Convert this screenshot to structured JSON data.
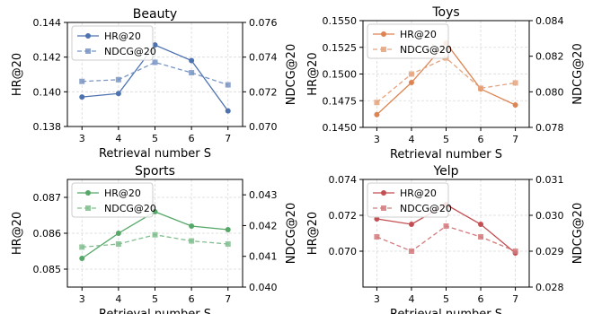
{
  "chart_data": [
    {
      "type": "line",
      "title": "Beauty",
      "xlabel": "Retrieval number S",
      "ylabel_left": "HR@20",
      "ylabel_right": "NDCG@20",
      "x": [
        3,
        4,
        5,
        6,
        7
      ],
      "xticks": [
        "3",
        "4",
        "5",
        "6",
        "7"
      ],
      "ylim_left": [
        0.138,
        0.144
      ],
      "yticks_left": [
        "0.138",
        "0.140",
        "0.142",
        "0.144"
      ],
      "ylim_right": [
        0.07,
        0.076
      ],
      "yticks_right": [
        "0.070",
        "0.072",
        "0.074",
        "0.076"
      ],
      "color": "#4c72b0",
      "legend_position": "upper-left",
      "grid": true,
      "series": [
        {
          "name": "HR@20",
          "axis": "left",
          "marker": "circle",
          "dashed": false,
          "values": [
            0.1397,
            0.1399,
            0.1427,
            0.1418,
            0.1389
          ]
        },
        {
          "name": "NDCG@20",
          "axis": "right",
          "marker": "square",
          "dashed": true,
          "values": [
            0.0726,
            0.0727,
            0.0737,
            0.0731,
            0.0724
          ]
        }
      ]
    },
    {
      "type": "line",
      "title": "Toys",
      "xlabel": "Retrieval number S",
      "ylabel_left": "HR@20",
      "ylabel_right": "NDCG@20",
      "x": [
        3,
        4,
        5,
        6,
        7
      ],
      "xticks": [
        "3",
        "4",
        "5",
        "6",
        "7"
      ],
      "ylim_left": [
        0.145,
        0.155
      ],
      "yticks_left": [
        "0.1450",
        "0.1475",
        "0.1500",
        "0.1525",
        "0.1550"
      ],
      "ylim_right": [
        0.078,
        0.084
      ],
      "yticks_right": [
        "0.078",
        "0.080",
        "0.082",
        "0.084"
      ],
      "color": "#dd8452",
      "legend_position": "upper-left",
      "grid": true,
      "series": [
        {
          "name": "HR@20",
          "axis": "left",
          "marker": "circle",
          "dashed": false,
          "values": [
            0.1462,
            0.1492,
            0.1529,
            0.1486,
            0.1471
          ]
        },
        {
          "name": "NDCG@20",
          "axis": "right",
          "marker": "square",
          "dashed": true,
          "values": [
            0.0794,
            0.081,
            0.0819,
            0.0802,
            0.0805
          ]
        }
      ]
    },
    {
      "type": "line",
      "title": "Sports",
      "xlabel": "Retrieval number S",
      "ylabel_left": "HR@20",
      "ylabel_right": "NDCG@20",
      "x": [
        3,
        4,
        5,
        6,
        7
      ],
      "xticks": [
        "3",
        "4",
        "5",
        "6",
        "7"
      ],
      "ylim_left": [
        0.0845,
        0.0875
      ],
      "yticks_left": [
        "0.085",
        "0.086",
        "0.087"
      ],
      "ylim_right": [
        0.04,
        0.0435
      ],
      "yticks_right": [
        "0.040",
        "0.041",
        "0.042",
        "0.043"
      ],
      "color": "#55a868",
      "legend_position": "upper-left",
      "grid": true,
      "series": [
        {
          "name": "HR@20",
          "axis": "left",
          "marker": "circle",
          "dashed": false,
          "values": [
            0.0853,
            0.086,
            0.0866,
            0.0862,
            0.0861
          ]
        },
        {
          "name": "NDCG@20",
          "axis": "right",
          "marker": "square",
          "dashed": true,
          "values": [
            0.0413,
            0.0414,
            0.0417,
            0.0415,
            0.0414
          ]
        }
      ]
    },
    {
      "type": "line",
      "title": "Yelp",
      "xlabel": "Retrieval number S",
      "ylabel_left": "HR@20",
      "ylabel_right": "NDCG@20",
      "x": [
        3,
        4,
        5,
        6,
        7
      ],
      "xticks": [
        "3",
        "4",
        "5",
        "6",
        "7"
      ],
      "ylim_left": [
        0.068,
        0.074
      ],
      "yticks_left": [
        "0.070",
        "0.072",
        "0.074"
      ],
      "ylim_right": [
        0.028,
        0.031
      ],
      "yticks_right": [
        "0.028",
        "0.029",
        "0.030",
        "0.031"
      ],
      "color": "#c44e52",
      "legend_position": "upper-left",
      "grid": true,
      "series": [
        {
          "name": "HR@20",
          "axis": "left",
          "marker": "circle",
          "dashed": false,
          "values": [
            0.0718,
            0.0715,
            0.0726,
            0.0715,
            0.0699
          ]
        },
        {
          "name": "NDCG@20",
          "axis": "right",
          "marker": "square",
          "dashed": true,
          "values": [
            0.0294,
            0.029,
            0.0297,
            0.0294,
            0.029
          ]
        }
      ]
    }
  ]
}
